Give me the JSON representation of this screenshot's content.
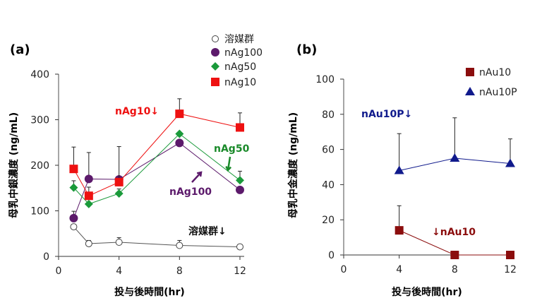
{
  "chart_data": [
    {
      "type": "line",
      "panel_label": "(a)",
      "xlabel": "投与後時間(hr)",
      "ylabel": "母乳中銀濃度 (ng/mL)",
      "xlim": [
        0,
        12
      ],
      "ylim": [
        0,
        400
      ],
      "xticks": [
        0,
        4,
        8,
        12
      ],
      "yticks": [
        0,
        100,
        200,
        300,
        400
      ],
      "grid": false,
      "legend": "top-right",
      "x": [
        1,
        2,
        4,
        8,
        12
      ],
      "series": [
        {
          "name": "溶媒群",
          "marker": "circle-open",
          "color": "#555555",
          "values": [
            65,
            28,
            31,
            24,
            21
          ],
          "err_upper": [
            70,
            35,
            41,
            35,
            21
          ]
        },
        {
          "name": "nAg100",
          "marker": "circle",
          "color": "#5c1a6b",
          "values": [
            84,
            170,
            169,
            249,
            146
          ],
          "err_upper": [
            99,
            228,
            169,
            249,
            146
          ]
        },
        {
          "name": "nAg50",
          "marker": "diamond",
          "color": "#1a9a3a",
          "values": [
            151,
            115,
            138,
            269,
            167
          ],
          "err_upper": [
            166,
            115,
            148,
            269,
            187
          ]
        },
        {
          "name": "nAg10",
          "marker": "square",
          "color": "#ee1111",
          "values": [
            192,
            133,
            163,
            313,
            283
          ],
          "err_upper": [
            240,
            152,
            241,
            346,
            315
          ]
        }
      ],
      "annotations": [
        {
          "text": "nAg10↓",
          "color": "#ee1111"
        },
        {
          "text": "nAg50",
          "color": "#1a8a2a"
        },
        {
          "text": "nAg100",
          "color": "#5c1a6b"
        },
        {
          "text": "溶媒群↓",
          "color": "#111111"
        }
      ]
    },
    {
      "type": "line",
      "panel_label": "(b)",
      "xlabel": "投与後時間(hr)",
      "ylabel": "母乳中金濃度 (ng/mL)",
      "xlim": [
        0,
        12
      ],
      "ylim": [
        0,
        100
      ],
      "xticks": [
        0,
        4,
        8,
        12
      ],
      "yticks": [
        0,
        20,
        40,
        60,
        80,
        100
      ],
      "grid": false,
      "legend": "top-right",
      "x": [
        4,
        8,
        12
      ],
      "series": [
        {
          "name": "nAu10",
          "marker": "square",
          "color": "#8b0d0d",
          "values": [
            14,
            0,
            0
          ],
          "err_upper": [
            28,
            0,
            0
          ]
        },
        {
          "name": "nAu10P",
          "marker": "triangle",
          "color": "#101a8c",
          "values": [
            48,
            55,
            52
          ],
          "err_upper": [
            69,
            78,
            66
          ]
        }
      ],
      "annotations": [
        {
          "text": "nAu10P↓",
          "color": "#101a8c"
        },
        {
          "text": "↓nAu10",
          "color": "#8b0d0d"
        }
      ]
    }
  ]
}
